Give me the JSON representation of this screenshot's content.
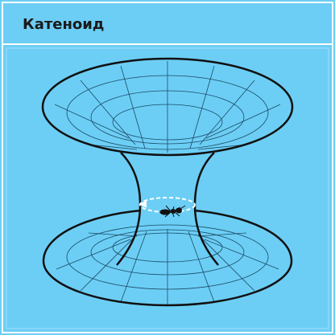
{
  "header": {
    "title": "Катеноид"
  }
}
